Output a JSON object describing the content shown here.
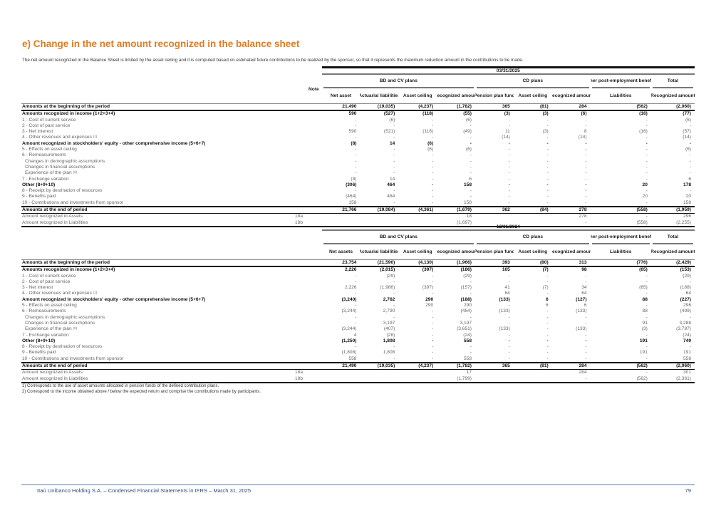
{
  "title": "e) Change in the net amount recognized in the balance sheet",
  "intro": "The net amount recognized in the Balance Sheet is limited by the asset ceiling and it is computed based on estimated future contributions to be realized by the sponsor, so that it represents the maximum reduction amount in the contributions to be made.",
  "colors": {
    "title": "#e07b1f",
    "footer": "#2c4a7c"
  },
  "tables": [
    {
      "date": "03/31/2025",
      "note_header": "Note",
      "groups": {
        "bd": "BD and CV plans",
        "cd": "CD plans",
        "other": "Other post-employment benefits",
        "total": "Total"
      },
      "columns": [
        "Net asset",
        "Actuarial liabilities",
        "Asset ceiling",
        "Recognized amount",
        "Pension plan fund",
        "Asset ceiling",
        "Recognized amount",
        "Liabilities",
        "Recognized amount"
      ],
      "rows": [
        {
          "label": "Amounts at the beginning of the period",
          "note": "",
          "style": "bold begin",
          "values": [
            "21,490",
            "(19,035)",
            "(4,237)",
            "(1,782)",
            "365",
            "(81)",
            "284",
            "(562)",
            "(2,060)"
          ]
        },
        {
          "label": "Amounts recognized in income (1+2+3+4)",
          "note": "",
          "style": "bold",
          "values": [
            "590",
            "(527)",
            "(118)",
            "(55)",
            "(3)",
            "(3)",
            "(6)",
            "(16)",
            "(77)"
          ]
        },
        {
          "label": "1 - Cost of current service",
          "note": "",
          "style": "",
          "values": [
            "-",
            "(6)",
            "-",
            "(6)",
            "-",
            "-",
            "-",
            "-",
            "(6)"
          ]
        },
        {
          "label": "2 - Cost of past service",
          "note": "",
          "style": "",
          "values": [
            "-",
            "-",
            "-",
            "-",
            "-",
            "-",
            "-",
            "-",
            "-"
          ]
        },
        {
          "label": "3 - Net interest",
          "note": "",
          "style": "",
          "values": [
            "590",
            "(521)",
            "(118)",
            "(49)",
            "11",
            "(3)",
            "8",
            "(16)",
            "(57)"
          ]
        },
        {
          "label": "4 - Other revenues and expenses",
          "sup": "(1)",
          "note": "",
          "style": "",
          "values": [
            "-",
            "-",
            "-",
            "-",
            "(14)",
            "-",
            "(14)",
            "-",
            "(14)"
          ]
        },
        {
          "label": "Amount recognized in stockholders' equity - other comprehensive income (5+6+7)",
          "note": "",
          "style": "bold",
          "values": [
            "(8)",
            "14",
            "(6)",
            "-",
            "-",
            "-",
            "-",
            "-",
            "-"
          ]
        },
        {
          "label": "5 - Effects on asset ceiling",
          "note": "",
          "style": "",
          "values": [
            "-",
            "-",
            "(6)",
            "(6)",
            "-",
            "-",
            "-",
            "-",
            "(6)"
          ]
        },
        {
          "label": "6 - Remeasurements",
          "note": "",
          "style": "",
          "values": [
            "-",
            "-",
            "-",
            "-",
            "-",
            "-",
            "-",
            "-",
            "-"
          ]
        },
        {
          "label": "Changes in demographic assumptions",
          "note": "",
          "style": "indent",
          "values": [
            "-",
            "-",
            "-",
            "-",
            "-",
            "-",
            "-",
            "-",
            "-"
          ]
        },
        {
          "label": "Changes in financial assumptions",
          "note": "",
          "style": "indent",
          "values": [
            "-",
            "-",
            "-",
            "-",
            "-",
            "-",
            "-",
            "-",
            "-"
          ]
        },
        {
          "label": "Experience of the plan",
          "sup": "(2)",
          "note": "",
          "style": "indent",
          "values": [
            "-",
            "-",
            "-",
            "-",
            "-",
            "-",
            "-",
            "-",
            "-"
          ]
        },
        {
          "label": "7 - Exchange variation",
          "note": "",
          "style": "",
          "values": [
            "(8)",
            "14",
            "-",
            "6",
            "-",
            "-",
            "-",
            "-",
            "6"
          ]
        },
        {
          "label": "Other (8+9+10)",
          "note": "",
          "style": "bold",
          "values": [
            "(306)",
            "464",
            "-",
            "158",
            "-",
            "-",
            "-",
            "20",
            "178"
          ]
        },
        {
          "label": "8 - Receipt by destination of resources",
          "note": "",
          "style": "",
          "values": [
            "-",
            "-",
            "-",
            "-",
            "-",
            "-",
            "-",
            "-",
            "-"
          ]
        },
        {
          "label": "9 - Benefits paid",
          "note": "",
          "style": "",
          "values": [
            "(464)",
            "464",
            "-",
            "-",
            "-",
            "-",
            "-",
            "20",
            "20"
          ]
        },
        {
          "label": "10 - Contributions and investments from sponsor",
          "note": "",
          "style": "",
          "values": [
            "158",
            "-",
            "-",
            "158",
            "-",
            "-",
            "-",
            "-",
            "158"
          ]
        },
        {
          "label": "Amounts at the end of period",
          "note": "",
          "style": "bold end",
          "values": [
            "21,766",
            "(19,084)",
            "(4,361)",
            "(1,679)",
            "362",
            "(84)",
            "278",
            "(558)",
            "(1,959)"
          ]
        },
        {
          "label": "Amount recognized in Assets",
          "note": "18a",
          "style": "",
          "values": [
            "",
            "",
            "",
            "18",
            "",
            "",
            "278",
            "-",
            "296"
          ]
        },
        {
          "label": "Amount recognized in Liabilities",
          "note": "18b",
          "style": "last",
          "values": [
            "",
            "",
            "",
            "(1,697)",
            "",
            "",
            "-",
            "(558)",
            "(2,255)"
          ]
        }
      ]
    },
    {
      "date": "12/31/2024",
      "note_header": "",
      "groups": {
        "bd": "BD and CV plans",
        "cd": "CD plans",
        "other": "Other post-employment benefits",
        "total": "Total"
      },
      "columns": [
        "Net assets",
        "Actuarial liabilities",
        "Asset ceiling",
        "Recognized amount",
        "Pension plan fund",
        "Asset ceiling",
        "Recognized amount",
        "Liabilities",
        "Recognized amount"
      ],
      "rows": [
        {
          "label": "Amounts at the beginning of the period",
          "note": "",
          "style": "bold begin",
          "values": [
            "23,754",
            "(21,590)",
            "(4,130)",
            "(1,966)",
            "393",
            "(80)",
            "313",
            "(776)",
            "(2,429)"
          ]
        },
        {
          "label": "Amounts recognized in income (1+2+3+4)",
          "note": "",
          "style": "bold",
          "values": [
            "2,226",
            "(2,015)",
            "(397)",
            "(186)",
            "105",
            "(7)",
            "98",
            "(65)",
            "(153)"
          ]
        },
        {
          "label": "1 - Cost of current service",
          "note": "",
          "style": "",
          "values": [
            "-",
            "(29)",
            "-",
            "(29)",
            "-",
            "-",
            "-",
            "-",
            "(29)"
          ]
        },
        {
          "label": "2 - Cost of past service",
          "note": "",
          "style": "",
          "values": [
            "-",
            "-",
            "-",
            "-",
            "-",
            "-",
            "-",
            "-",
            "-"
          ]
        },
        {
          "label": "3 - Net interest",
          "note": "",
          "style": "",
          "values": [
            "2,226",
            "(1,986)",
            "(397)",
            "(157)",
            "41",
            "(7)",
            "34",
            "(65)",
            "(188)"
          ]
        },
        {
          "label": "4 - Other revenues and expenses",
          "sup": "(1)",
          "note": "",
          "style": "",
          "values": [
            "-",
            "-",
            "-",
            "-",
            "64",
            "-",
            "64",
            "-",
            "64"
          ]
        },
        {
          "label": "Amount recognized in stockholders' equity - other comprehensive income (5+6+7)",
          "note": "",
          "style": "bold",
          "values": [
            "(3,240)",
            "2,762",
            "290",
            "(188)",
            "(133)",
            "6",
            "(127)",
            "88",
            "(227)"
          ]
        },
        {
          "label": "5 - Effects on asset ceiling",
          "note": "",
          "style": "",
          "values": [
            "-",
            "-",
            "290",
            "290",
            "-",
            "6",
            "6",
            "-",
            "296"
          ]
        },
        {
          "label": "6 - Remeasurements",
          "note": "",
          "style": "",
          "values": [
            "(3,244)",
            "2,790",
            "-",
            "(454)",
            "(133)",
            "-",
            "(133)",
            "88",
            "(499)"
          ]
        },
        {
          "label": "Changes in demographic assumptions",
          "note": "",
          "style": "indent",
          "values": [
            "-",
            "-",
            "-",
            "-",
            "-",
            "-",
            "-",
            "-",
            "-"
          ]
        },
        {
          "label": "Changes in financial assumptions",
          "note": "",
          "style": "indent",
          "values": [
            "-",
            "3,197",
            "-",
            "3,197",
            "-",
            "-",
            "-",
            "91",
            "3,288"
          ]
        },
        {
          "label": "Experience of the plan",
          "sup": "(2)",
          "note": "",
          "style": "indent",
          "values": [
            "(3,244)",
            "(407)",
            "-",
            "(3,651)",
            "(133)",
            "-",
            "(133)",
            "(3)",
            "(3,787)"
          ]
        },
        {
          "label": "7 - Exchange variation",
          "note": "",
          "style": "",
          "values": [
            "4",
            "(28)",
            "-",
            "(24)",
            "-",
            "-",
            "-",
            "-",
            "(24)"
          ]
        },
        {
          "label": "Other (8+9+10)",
          "note": "",
          "style": "bold",
          "values": [
            "(1,250)",
            "1,808",
            "-",
            "558",
            "-",
            "-",
            "-",
            "191",
            "749"
          ]
        },
        {
          "label": "8 - Receipt by destination of resources",
          "note": "",
          "style": "",
          "values": [
            "-",
            "-",
            "-",
            "-",
            "-",
            "-",
            "-",
            "-",
            "-"
          ]
        },
        {
          "label": "9 - Benefits paid",
          "note": "",
          "style": "",
          "values": [
            "(1,808)",
            "1,808",
            "-",
            "-",
            "-",
            "-",
            "-",
            "191",
            "191"
          ]
        },
        {
          "label": "10 - Contributions and investments from sponsor",
          "note": "",
          "style": "",
          "values": [
            "558",
            "-",
            "-",
            "558",
            "-",
            "-",
            "-",
            "-",
            "558"
          ]
        },
        {
          "label": "Amounts at the end of period",
          "note": "",
          "style": "bold end",
          "values": [
            "21,490",
            "(19,035)",
            "(4,237)",
            "(1,782)",
            "365",
            "(81)",
            "284",
            "(562)",
            "(2,060)"
          ]
        },
        {
          "label": "Amount recognized in Assets",
          "note": "18a",
          "style": "",
          "values": [
            "",
            "",
            "",
            "17",
            "",
            "",
            "284",
            "-",
            "301"
          ]
        },
        {
          "label": "Amount recognized in Liabilities",
          "note": "18b",
          "style": "last",
          "values": [
            "",
            "",
            "",
            "(1,799)",
            "",
            "",
            "-",
            "(562)",
            "(2,361)"
          ]
        }
      ]
    }
  ],
  "footnotes": [
    "1) Corresponds to the use of asset amounts allocated in pension funds of the defined contribution plans.",
    "2) Correspond to the income obtained above / below the expected return and comprise the contributions made by participants."
  ],
  "footer": {
    "text": "Itaú Unibanco Holding S.A. – Condensed Financial Statements in IFRS – March 31, 2025",
    "page": "79"
  }
}
